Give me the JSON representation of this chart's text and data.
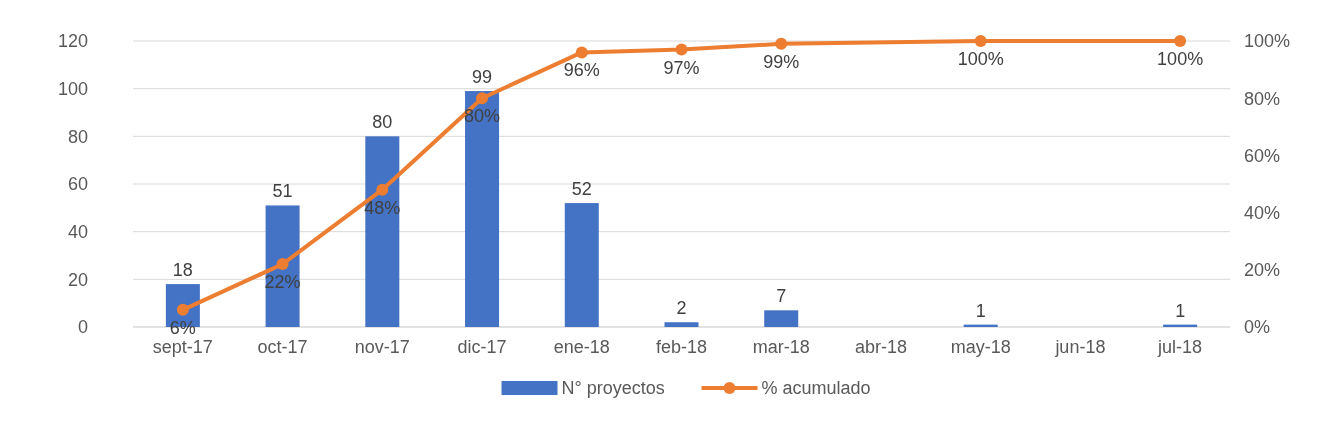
{
  "chart_data": {
    "type": "bar",
    "categories": [
      "sept-17",
      "oct-17",
      "nov-17",
      "dic-17",
      "ene-18",
      "feb-18",
      "mar-18",
      "abr-18",
      "may-18",
      "jun-18",
      "jul-18"
    ],
    "series": [
      {
        "name": "N° proyectos",
        "color": "#4472c4",
        "values": [
          18,
          51,
          80,
          99,
          52,
          2,
          7,
          null,
          1,
          null,
          1
        ]
      },
      {
        "name": "% acumulado",
        "type": "line",
        "axis": "y2",
        "color": "#ed7d31",
        "marker": "circle",
        "values": [
          6,
          22,
          48,
          80,
          96,
          97,
          99,
          null,
          100,
          null,
          100
        ],
        "value_labels": [
          "6%",
          "22%",
          "48%",
          "80%",
          "96%",
          "97%",
          "99%",
          null,
          "100%",
          null,
          "100%"
        ]
      }
    ],
    "ylim": [
      0,
      120
    ],
    "yticks": [
      0,
      20,
      40,
      60,
      80,
      100,
      120
    ],
    "y2lim": [
      0,
      100
    ],
    "y2ticks": [
      {
        "value": 0,
        "label": "0%"
      },
      {
        "value": 20,
        "label": "20%"
      },
      {
        "value": 40,
        "label": "40%"
      },
      {
        "value": 60,
        "label": "60%"
      },
      {
        "value": 80,
        "label": "80%"
      },
      {
        "value": 100,
        "label": "100%"
      }
    ],
    "grid": "y",
    "legend": "bottom",
    "data_labels": true
  }
}
